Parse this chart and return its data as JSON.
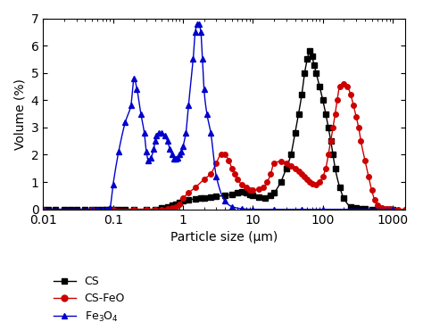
{
  "title": "",
  "xlabel": "Particle size (μm)",
  "ylabel": "Volume (%)",
  "xlim_log": [
    -2,
    3.18
  ],
  "ylim": [
    0,
    7
  ],
  "yticks": [
    0,
    1,
    2,
    3,
    4,
    5,
    6,
    7
  ],
  "xtick_labels": [
    "0.01",
    "0.1",
    "1",
    "10",
    "100",
    "1000"
  ],
  "xtick_values": [
    0.01,
    0.1,
    1,
    10,
    100,
    1000
  ],
  "background_color": "#ffffff",
  "legend": {
    "CS": {
      "color": "#000000",
      "marker": "s"
    },
    "CS-FeO": {
      "color": "#cc0000",
      "marker": "o"
    },
    "Fe3O4": {
      "color": "#0000cc",
      "marker": "^"
    }
  },
  "CS": {
    "x": [
      0.01,
      0.012,
      0.015,
      0.02,
      0.025,
      0.03,
      0.04,
      0.05,
      0.06,
      0.07,
      0.08,
      0.09,
      0.1,
      0.12,
      0.15,
      0.2,
      0.3,
      0.4,
      0.5,
      0.6,
      0.7,
      0.8,
      0.9,
      1.0,
      1.2,
      1.5,
      1.8,
      2.0,
      2.5,
      3.0,
      4.0,
      5.0,
      6.0,
      7.0,
      8.0,
      9.0,
      10.0,
      12.0,
      15.0,
      18.0,
      20.0,
      25.0,
      30.0,
      35.0,
      40.0,
      45.0,
      50.0,
      55.0,
      60.0,
      65.0,
      70.0,
      75.0,
      80.0,
      90.0,
      100.0,
      110.0,
      120.0,
      130.0,
      140.0,
      150.0,
      175.0,
      200.0,
      250.0,
      300.0,
      350.0,
      400.0,
      500.0,
      600.0,
      700.0,
      800.0,
      900.0,
      1000.0
    ],
    "y": [
      0.0,
      0.0,
      0.0,
      0.0,
      0.0,
      0.0,
      0.0,
      0.0,
      0.0,
      0.0,
      0.0,
      0.0,
      0.0,
      0.0,
      0.0,
      0.0,
      0.0,
      0.0,
      0.05,
      0.1,
      0.15,
      0.2,
      0.25,
      0.3,
      0.35,
      0.38,
      0.4,
      0.42,
      0.45,
      0.48,
      0.5,
      0.55,
      0.6,
      0.65,
      0.6,
      0.55,
      0.5,
      0.45,
      0.4,
      0.5,
      0.6,
      1.0,
      1.5,
      2.0,
      2.8,
      3.5,
      4.2,
      5.0,
      5.5,
      5.8,
      5.6,
      5.3,
      5.0,
      4.5,
      4.0,
      3.5,
      3.0,
      2.5,
      2.0,
      1.5,
      0.8,
      0.4,
      0.1,
      0.05,
      0.02,
      0.01,
      0.0,
      0.0,
      0.0,
      0.0,
      0.0,
      0.0
    ]
  },
  "CS_FeO": {
    "x": [
      0.01,
      0.05,
      0.1,
      0.2,
      0.3,
      0.4,
      0.5,
      0.6,
      0.7,
      0.8,
      0.9,
      1.0,
      1.2,
      1.5,
      2.0,
      2.5,
      3.0,
      3.5,
      4.0,
      4.5,
      5.0,
      5.5,
      6.0,
      7.0,
      8.0,
      9.0,
      10.0,
      12.0,
      14.0,
      16.0,
      18.0,
      20.0,
      25.0,
      30.0,
      35.0,
      40.0,
      45.0,
      50.0,
      55.0,
      60.0,
      65.0,
      70.0,
      80.0,
      90.0,
      100.0,
      110.0,
      120.0,
      130.0,
      140.0,
      150.0,
      160.0,
      175.0,
      200.0,
      225.0,
      250.0,
      275.0,
      300.0,
      325.0,
      350.0,
      400.0,
      450.0,
      500.0,
      550.0,
      600.0,
      700.0,
      800.0,
      900.0,
      1000.0,
      1200.0,
      1500.0
    ],
    "y": [
      0.0,
      0.0,
      0.0,
      0.0,
      0.0,
      0.0,
      0.0,
      0.02,
      0.05,
      0.1,
      0.2,
      0.4,
      0.6,
      0.8,
      1.1,
      1.3,
      1.7,
      2.0,
      2.0,
      1.8,
      1.5,
      1.3,
      1.1,
      0.9,
      0.8,
      0.7,
      0.7,
      0.75,
      0.8,
      1.0,
      1.3,
      1.7,
      1.75,
      1.7,
      1.6,
      1.5,
      1.4,
      1.3,
      1.2,
      1.1,
      1.0,
      0.95,
      0.9,
      1.0,
      1.2,
      1.5,
      2.0,
      2.5,
      3.0,
      3.5,
      4.0,
      4.5,
      4.6,
      4.5,
      4.2,
      3.8,
      3.4,
      3.0,
      2.5,
      1.8,
      1.2,
      0.7,
      0.35,
      0.15,
      0.05,
      0.02,
      0.01,
      0.0,
      0.0,
      0.0
    ]
  },
  "Fe3O4": {
    "x": [
      0.01,
      0.05,
      0.06,
      0.07,
      0.08,
      0.09,
      0.1,
      0.12,
      0.15,
      0.18,
      0.2,
      0.22,
      0.25,
      0.28,
      0.3,
      0.32,
      0.35,
      0.38,
      0.4,
      0.42,
      0.45,
      0.5,
      0.55,
      0.6,
      0.65,
      0.7,
      0.75,
      0.8,
      0.85,
      0.9,
      0.95,
      1.0,
      1.1,
      1.2,
      1.4,
      1.5,
      1.6,
      1.7,
      1.8,
      1.9,
      2.0,
      2.2,
      2.5,
      3.0,
      4.0,
      5.0,
      7.0,
      10.0,
      20.0,
      50.0,
      100.0,
      1000.0
    ],
    "y": [
      0.0,
      0.0,
      0.0,
      0.0,
      0.0,
      0.05,
      0.9,
      2.1,
      3.2,
      3.8,
      4.8,
      4.4,
      3.5,
      2.8,
      2.1,
      1.8,
      1.9,
      2.2,
      2.5,
      2.7,
      2.8,
      2.8,
      2.7,
      2.5,
      2.2,
      2.0,
      1.85,
      1.85,
      1.9,
      2.0,
      2.1,
      2.3,
      2.8,
      3.8,
      5.5,
      6.5,
      6.8,
      6.8,
      6.5,
      5.5,
      4.4,
      3.5,
      2.8,
      1.2,
      0.3,
      0.1,
      0.02,
      0.0,
      0.0,
      0.0,
      0.0,
      0.0
    ]
  }
}
